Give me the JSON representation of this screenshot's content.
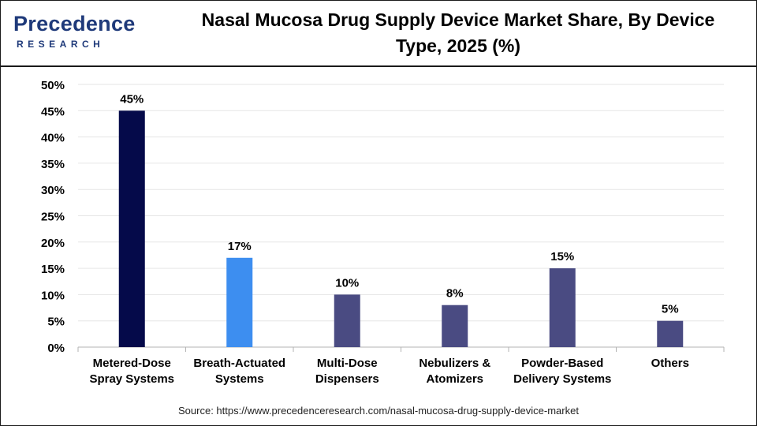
{
  "header": {
    "logo_top": "Precedence",
    "logo_bottom": "RESEARCH",
    "title_line1": "Nasal Mucosa Drug Supply Device Market Share, By Device",
    "title_line2": "Type, 2025 (%)"
  },
  "source": "Source: https://www.precedenceresearch.com/nasal-mucosa-drug-supply-device-market",
  "colors": {
    "logo": "#1f3a7a",
    "bar_default": "#4a4b82",
    "bar_highlight_dark": "#050a4a",
    "bar_highlight_light": "#3d8ef0",
    "grid": "#e6e6e6"
  },
  "chart_data": {
    "type": "bar",
    "title": "Nasal Mucosa Drug Supply Device Market Share, By Device Type, 2025 (%)",
    "categories": [
      [
        "Metered-Dose",
        "Spray Systems"
      ],
      [
        "Breath-Actuated",
        "Systems"
      ],
      [
        "Multi-Dose",
        "Dispensers"
      ],
      [
        "Nebulizers &",
        "Atomizers"
      ],
      [
        "Powder-Based",
        "Delivery Systems"
      ],
      [
        "Others"
      ]
    ],
    "values": [
      45,
      17,
      10,
      8,
      15,
      5
    ],
    "value_labels": [
      "45%",
      "17%",
      "10%",
      "8%",
      "15%",
      "5%"
    ],
    "bar_colors": [
      "#050a4a",
      "#3d8ef0",
      "#4a4b82",
      "#4a4b82",
      "#4a4b82",
      "#4a4b82"
    ],
    "ylim": [
      0,
      50
    ],
    "yticks": [
      0,
      5,
      10,
      15,
      20,
      25,
      30,
      35,
      40,
      45,
      50
    ],
    "ytick_labels": [
      "0%",
      "5%",
      "10%",
      "15%",
      "20%",
      "25%",
      "30%",
      "35%",
      "40%",
      "45%",
      "50%"
    ],
    "xlabel": "",
    "ylabel": "",
    "grid": true,
    "legend": "none"
  }
}
